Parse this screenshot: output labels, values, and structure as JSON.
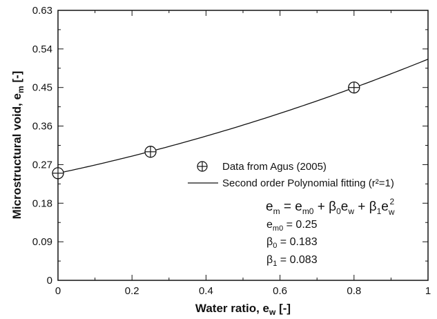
{
  "chart_data": {
    "type": "scatter",
    "xlabel_main": "Water ratio, e",
    "xlabel_sub": "w",
    "xlabel_tail": " [-]",
    "ylabel_main": "Microstructural void, e",
    "ylabel_sub": "m",
    "ylabel_tail": " [-]",
    "xlim": [
      0,
      1
    ],
    "ylim": [
      0,
      0.63
    ],
    "xticks": [
      0,
      0.2,
      0.4,
      0.6,
      0.8,
      1
    ],
    "xtick_labels": [
      "0",
      "0.2",
      "0.4",
      "0.6",
      "0.8",
      "1"
    ],
    "yticks": [
      0,
      0.09,
      0.18,
      0.27,
      0.36,
      0.45,
      0.54,
      0.63
    ],
    "ytick_labels": [
      "0",
      "0.09",
      "0.18",
      "0.27",
      "0.36",
      "0.45",
      "0.54",
      "0.63"
    ],
    "grid": false,
    "legend_position": "center-right",
    "series": [
      {
        "name": "Data from Agus (2005)",
        "kind": "scatter",
        "marker": "circle-plus",
        "x": [
          0,
          0.25,
          0.8
        ],
        "y": [
          0.25,
          0.3,
          0.45
        ]
      },
      {
        "name": "Second order Polynomial fitting (r²=1)",
        "kind": "line",
        "equation": {
          "em0": 0.25,
          "beta0": 0.183,
          "beta1": 0.083
        },
        "x_range": [
          0,
          1
        ]
      }
    ],
    "annotations": {
      "eq_parts": [
        "e",
        "m",
        " = e",
        "m0",
        " + β",
        "0",
        "e",
        "w",
        " + β",
        "1",
        "e",
        "w",
        "2"
      ],
      "em0_label": "e",
      "em0_sub": "m0",
      "em0_value": " = 0.25",
      "beta0_label": "β",
      "beta0_sub": "0",
      "beta0_value": " = 0.183",
      "beta1_label": "β",
      "beta1_sub": "1",
      "beta1_value": " = 0.083"
    }
  }
}
